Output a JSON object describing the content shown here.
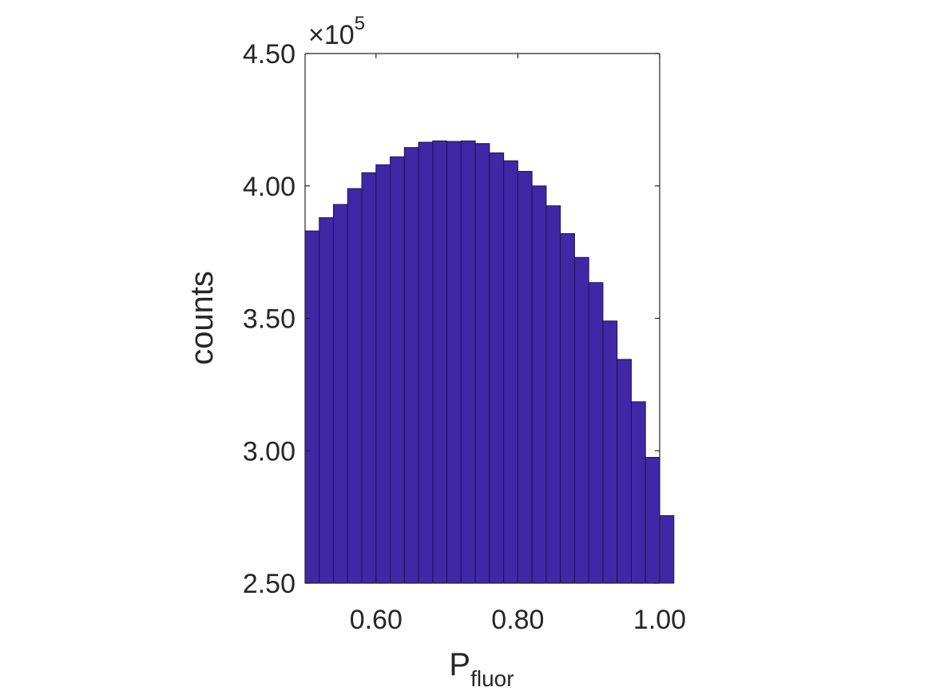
{
  "chart_data": {
    "type": "bar",
    "subtype": "histogram",
    "xlabel": "P",
    "xlabel_subscript": "fluor",
    "ylabel": "counts",
    "y_exponent_prefix": "×10",
    "y_exponent": "5",
    "xlim": [
      0.5,
      1.0
    ],
    "ylim": [
      2.5,
      4.5
    ],
    "x_ticks": [
      0.6,
      0.8,
      1.0
    ],
    "x_tick_labels": [
      "0.60",
      "0.80",
      "1.00"
    ],
    "y_ticks": [
      2.5,
      3.0,
      3.5,
      4.0,
      4.5
    ],
    "y_tick_labels": [
      "2.50",
      "3.00",
      "3.50",
      "4.00",
      "4.50"
    ],
    "bin_width": 0.02,
    "bin_edges_start": 0.5,
    "values": [
      3.83,
      3.88,
      3.93,
      3.99,
      4.05,
      4.08,
      4.11,
      4.145,
      4.165,
      4.17,
      4.168,
      4.17,
      4.16,
      4.125,
      4.095,
      4.055,
      4.0,
      3.925,
      3.82,
      3.73,
      3.635,
      3.49,
      3.345,
      3.185,
      2.975,
      2.755
    ],
    "bar_color": "#3f28a6",
    "bar_edge_color": "#1e1450",
    "axis_color": "#262626",
    "grid": false
  }
}
